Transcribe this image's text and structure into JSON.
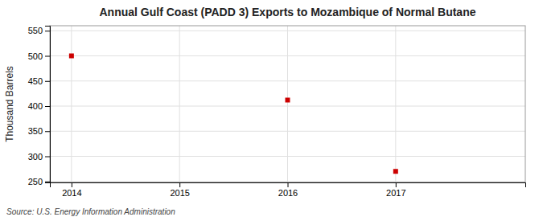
{
  "chart_data": {
    "type": "scatter",
    "title": "Annual Gulf Coast (PADD 3) Exports to Mozambique of Normal Butane",
    "y_label": "Thousand Barrels",
    "source": "Source: U.S. Energy Information Administration",
    "x": [
      2014,
      2016,
      2017
    ],
    "values": [
      500,
      412,
      270
    ],
    "xlim": [
      2013.8,
      2018.2
    ],
    "ylim": [
      248,
      560
    ],
    "xticks": [
      2014,
      2015,
      2016,
      2017
    ],
    "yticks": [
      250,
      300,
      350,
      400,
      450,
      500,
      550
    ],
    "color": "#cc0000",
    "marker": "square",
    "grid": true
  }
}
